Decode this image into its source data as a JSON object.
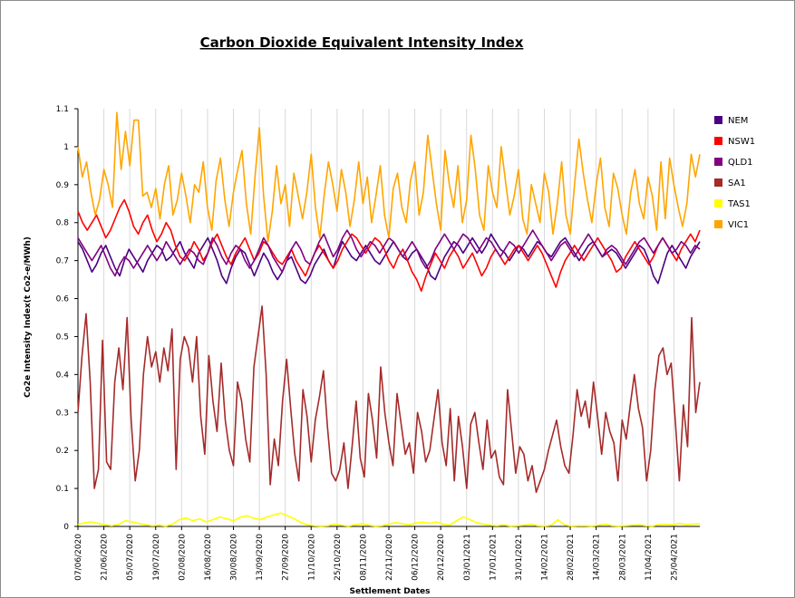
{
  "chart_data": {
    "type": "line",
    "title": "Carbon Dioxide Equivalent Intensity Index",
    "xlabel": "Settlement Dates",
    "ylabel": "Co2e Intensity Index(t Co2-e/MWh)",
    "ylim": [
      0,
      1.1
    ],
    "yticks": [
      0,
      0.1,
      0.2,
      0.3,
      0.4,
      0.5,
      0.6,
      0.7,
      0.8,
      0.9,
      1,
      1.1
    ],
    "ytick_labels": [
      "0",
      "0.1",
      "0.2",
      "0.3",
      "0.4",
      "0.5",
      "0.6",
      "0.7",
      "0.8",
      "0.9",
      "1",
      "1.1"
    ],
    "x_start": "2020-06-07",
    "x_end": "2021-05-09",
    "x_tick_labels": [
      "07/06/2020",
      "21/06/2020",
      "05/07/2020",
      "19/07/2020",
      "02/08/2020",
      "16/08/2020",
      "30/08/2020",
      "13/09/2020",
      "27/09/2020",
      "11/10/2020",
      "25/10/2020",
      "08/11/2020",
      "22/11/2020",
      "06/12/2020",
      "20/12/2020",
      "03/01/2021",
      "17/01/2021",
      "31/01/2021",
      "14/02/2021",
      "28/02/2021",
      "14/03/2021",
      "28/03/2021",
      "11/04/2021",
      "25/04/2021"
    ],
    "grid": "vertical lines at each x tick",
    "legend_position": "right",
    "series": [
      {
        "name": "NEM",
        "color": "#4b0082",
        "values": [
          0.75,
          0.73,
          0.7,
          0.67,
          0.69,
          0.72,
          0.74,
          0.71,
          0.68,
          0.66,
          0.7,
          0.73,
          0.71,
          0.69,
          0.67,
          0.7,
          0.72,
          0.74,
          0.73,
          0.7,
          0.71,
          0.73,
          0.75,
          0.72,
          0.7,
          0.68,
          0.72,
          0.74,
          0.76,
          0.73,
          0.7,
          0.66,
          0.64,
          0.68,
          0.71,
          0.73,
          0.72,
          0.69,
          0.66,
          0.69,
          0.72,
          0.7,
          0.67,
          0.65,
          0.67,
          0.7,
          0.71,
          0.68,
          0.65,
          0.64,
          0.66,
          0.69,
          0.71,
          0.73,
          0.7,
          0.68,
          0.72,
          0.75,
          0.73,
          0.71,
          0.7,
          0.72,
          0.74,
          0.72,
          0.7,
          0.69,
          0.71,
          0.73,
          0.75,
          0.73,
          0.71,
          0.7,
          0.72,
          0.73,
          0.71,
          0.69,
          0.66,
          0.65,
          0.68,
          0.71,
          0.73,
          0.75,
          0.74,
          0.72,
          0.74,
          0.76,
          0.74,
          0.72,
          0.74,
          0.77,
          0.75,
          0.73,
          0.72,
          0.7,
          0.72,
          0.74,
          0.73,
          0.71,
          0.73,
          0.75,
          0.74,
          0.72,
          0.71,
          0.73,
          0.75,
          0.76,
          0.74,
          0.72,
          0.7,
          0.72,
          0.74,
          0.75,
          0.73,
          0.71,
          0.72,
          0.73,
          0.72,
          0.7,
          0.68,
          0.7,
          0.72,
          0.74,
          0.73,
          0.7,
          0.66,
          0.64,
          0.68,
          0.72,
          0.74,
          0.72,
          0.7,
          0.68,
          0.71,
          0.73,
          0.75
        ]
      },
      {
        "name": "NSW1",
        "color": "#ff0000",
        "values": [
          0.83,
          0.8,
          0.78,
          0.8,
          0.82,
          0.79,
          0.76,
          0.78,
          0.81,
          0.84,
          0.86,
          0.83,
          0.79,
          0.77,
          0.8,
          0.82,
          0.78,
          0.75,
          0.77,
          0.8,
          0.78,
          0.74,
          0.71,
          0.7,
          0.72,
          0.75,
          0.73,
          0.7,
          0.72,
          0.75,
          0.77,
          0.74,
          0.71,
          0.69,
          0.72,
          0.74,
          0.76,
          0.73,
          0.7,
          0.72,
          0.75,
          0.74,
          0.72,
          0.7,
          0.69,
          0.71,
          0.73,
          0.7,
          0.68,
          0.66,
          0.69,
          0.72,
          0.74,
          0.72,
          0.7,
          0.68,
          0.7,
          0.73,
          0.75,
          0.77,
          0.76,
          0.74,
          0.72,
          0.74,
          0.76,
          0.75,
          0.73,
          0.7,
          0.68,
          0.71,
          0.73,
          0.7,
          0.67,
          0.65,
          0.62,
          0.66,
          0.69,
          0.72,
          0.7,
          0.68,
          0.71,
          0.73,
          0.71,
          0.68,
          0.7,
          0.72,
          0.69,
          0.66,
          0.68,
          0.71,
          0.73,
          0.71,
          0.69,
          0.71,
          0.73,
          0.74,
          0.72,
          0.7,
          0.72,
          0.74,
          0.72,
          0.69,
          0.66,
          0.63,
          0.67,
          0.7,
          0.72,
          0.74,
          0.72,
          0.7,
          0.72,
          0.74,
          0.76,
          0.74,
          0.72,
          0.7,
          0.67,
          0.68,
          0.71,
          0.73,
          0.75,
          0.73,
          0.71,
          0.69,
          0.71,
          0.74,
          0.76,
          0.74,
          0.72,
          0.7,
          0.73,
          0.75,
          0.77,
          0.75,
          0.78
        ]
      },
      {
        "name": "QLD1",
        "color": "#800080",
        "values": [
          0.76,
          0.74,
          0.72,
          0.7,
          0.72,
          0.74,
          0.71,
          0.68,
          0.66,
          0.69,
          0.71,
          0.7,
          0.68,
          0.7,
          0.72,
          0.74,
          0.72,
          0.7,
          0.72,
          0.75,
          0.73,
          0.71,
          0.69,
          0.71,
          0.73,
          0.72,
          0.7,
          0.69,
          0.72,
          0.76,
          0.74,
          0.71,
          0.69,
          0.72,
          0.74,
          0.73,
          0.7,
          0.68,
          0.7,
          0.73,
          0.76,
          0.74,
          0.71,
          0.69,
          0.67,
          0.7,
          0.73,
          0.75,
          0.73,
          0.7,
          0.69,
          0.72,
          0.75,
          0.77,
          0.74,
          0.71,
          0.73,
          0.76,
          0.78,
          0.76,
          0.73,
          0.71,
          0.73,
          0.75,
          0.74,
          0.72,
          0.74,
          0.76,
          0.75,
          0.73,
          0.71,
          0.73,
          0.75,
          0.73,
          0.7,
          0.68,
          0.7,
          0.73,
          0.75,
          0.77,
          0.75,
          0.73,
          0.75,
          0.77,
          0.76,
          0.74,
          0.72,
          0.74,
          0.76,
          0.75,
          0.73,
          0.71,
          0.73,
          0.75,
          0.74,
          0.72,
          0.74,
          0.76,
          0.78,
          0.76,
          0.74,
          0.72,
          0.7,
          0.72,
          0.74,
          0.75,
          0.73,
          0.71,
          0.73,
          0.75,
          0.77,
          0.75,
          0.73,
          0.71,
          0.73,
          0.74,
          0.73,
          0.71,
          0.69,
          0.71,
          0.73,
          0.75,
          0.76,
          0.74,
          0.72,
          0.74,
          0.76,
          0.74,
          0.72,
          0.73,
          0.75,
          0.74,
          0.72,
          0.74,
          0.73
        ]
      },
      {
        "name": "SA1",
        "color": "#a52a2a",
        "values": [
          0.3,
          0.45,
          0.56,
          0.38,
          0.1,
          0.15,
          0.49,
          0.17,
          0.15,
          0.38,
          0.47,
          0.36,
          0.55,
          0.28,
          0.12,
          0.2,
          0.4,
          0.5,
          0.42,
          0.46,
          0.38,
          0.47,
          0.41,
          0.52,
          0.15,
          0.44,
          0.5,
          0.47,
          0.38,
          0.5,
          0.29,
          0.19,
          0.45,
          0.33,
          0.25,
          0.43,
          0.28,
          0.2,
          0.16,
          0.38,
          0.33,
          0.23,
          0.17,
          0.42,
          0.5,
          0.58,
          0.4,
          0.11,
          0.23,
          0.16,
          0.33,
          0.44,
          0.31,
          0.19,
          0.12,
          0.36,
          0.29,
          0.17,
          0.28,
          0.34,
          0.41,
          0.26,
          0.14,
          0.12,
          0.15,
          0.22,
          0.1,
          0.21,
          0.33,
          0.18,
          0.13,
          0.35,
          0.28,
          0.18,
          0.42,
          0.3,
          0.22,
          0.16,
          0.35,
          0.27,
          0.19,
          0.22,
          0.14,
          0.3,
          0.25,
          0.17,
          0.2,
          0.28,
          0.36,
          0.22,
          0.16,
          0.31,
          0.12,
          0.29,
          0.21,
          0.1,
          0.27,
          0.3,
          0.22,
          0.15,
          0.28,
          0.18,
          0.2,
          0.13,
          0.11,
          0.36,
          0.25,
          0.14,
          0.21,
          0.19,
          0.12,
          0.16,
          0.09,
          0.12,
          0.15,
          0.2,
          0.24,
          0.28,
          0.21,
          0.16,
          0.14,
          0.24,
          0.36,
          0.29,
          0.33,
          0.26,
          0.38,
          0.29,
          0.19,
          0.3,
          0.25,
          0.22,
          0.12,
          0.28,
          0.23,
          0.32,
          0.4,
          0.31,
          0.26,
          0.12,
          0.2,
          0.36,
          0.45,
          0.47,
          0.4,
          0.43,
          0.28,
          0.12,
          0.32,
          0.21,
          0.55,
          0.3,
          0.38
        ]
      },
      {
        "name": "TAS1",
        "color": "#ffff00",
        "values": [
          0.005,
          0.01,
          0.012,
          0.008,
          0.004,
          0.002,
          0.005,
          0.015,
          0.012,
          0.008,
          0.004,
          0.002,
          0.003,
          0.001,
          0.006,
          0.018,
          0.022,
          0.015,
          0.02,
          0.012,
          0.018,
          0.025,
          0.02,
          0.015,
          0.024,
          0.028,
          0.022,
          0.018,
          0.025,
          0.03,
          0.035,
          0.028,
          0.02,
          0.01,
          0.004,
          0.002,
          0.001,
          0.002,
          0.006,
          0.003,
          0.001,
          0.004,
          0.007,
          0.003,
          0.001,
          0.002,
          0.006,
          0.01,
          0.007,
          0.004,
          0.009,
          0.011,
          0.008,
          0.012,
          0.006,
          0.003,
          0.015,
          0.025,
          0.018,
          0.01,
          0.006,
          0.003,
          0.002,
          0.004,
          0.001,
          0.002,
          0.003,
          0.006,
          0.002,
          0.001,
          0.003,
          0.018,
          0.004,
          0.001,
          0.002,
          0.002,
          0.001,
          0.003,
          0.006,
          0.002,
          0.001,
          0.002,
          0.003,
          0.004,
          0.002,
          0.001,
          0.005,
          0.006,
          0.004,
          0.008,
          0.005,
          0.006,
          0.007
        ]
      },
      {
        "name": "VIC1",
        "color": "#ffa500",
        "values": [
          1.0,
          0.92,
          0.96,
          0.88,
          0.82,
          0.86,
          0.94,
          0.9,
          0.84,
          1.09,
          0.94,
          1.04,
          0.95,
          1.07,
          1.07,
          0.87,
          0.88,
          0.84,
          0.89,
          0.81,
          0.9,
          0.95,
          0.82,
          0.86,
          0.93,
          0.87,
          0.8,
          0.9,
          0.88,
          0.96,
          0.84,
          0.78,
          0.91,
          0.97,
          0.86,
          0.79,
          0.88,
          0.94,
          0.99,
          0.85,
          0.77,
          0.92,
          1.05,
          0.87,
          0.75,
          0.83,
          0.95,
          0.85,
          0.9,
          0.79,
          0.93,
          0.87,
          0.81,
          0.88,
          0.98,
          0.84,
          0.76,
          0.87,
          0.96,
          0.9,
          0.83,
          0.94,
          0.88,
          0.79,
          0.86,
          0.96,
          0.85,
          0.92,
          0.8,
          0.87,
          0.95,
          0.82,
          0.76,
          0.89,
          0.93,
          0.84,
          0.8,
          0.91,
          0.96,
          0.82,
          0.88,
          1.03,
          0.94,
          0.85,
          0.78,
          0.99,
          0.9,
          0.84,
          0.95,
          0.8,
          0.86,
          1.03,
          0.94,
          0.82,
          0.78,
          0.95,
          0.88,
          0.84,
          1.0,
          0.91,
          0.82,
          0.87,
          0.94,
          0.81,
          0.77,
          0.9,
          0.85,
          0.8,
          0.93,
          0.88,
          0.77,
          0.85,
          0.96,
          0.82,
          0.77,
          0.9,
          1.02,
          0.93,
          0.86,
          0.8,
          0.9,
          0.97,
          0.84,
          0.79,
          0.93,
          0.89,
          0.82,
          0.77,
          0.88,
          0.94,
          0.85,
          0.81,
          0.92,
          0.87,
          0.78,
          0.96,
          0.81,
          0.97,
          0.9,
          0.84,
          0.79,
          0.85,
          0.98,
          0.92,
          0.98
        ]
      }
    ]
  }
}
